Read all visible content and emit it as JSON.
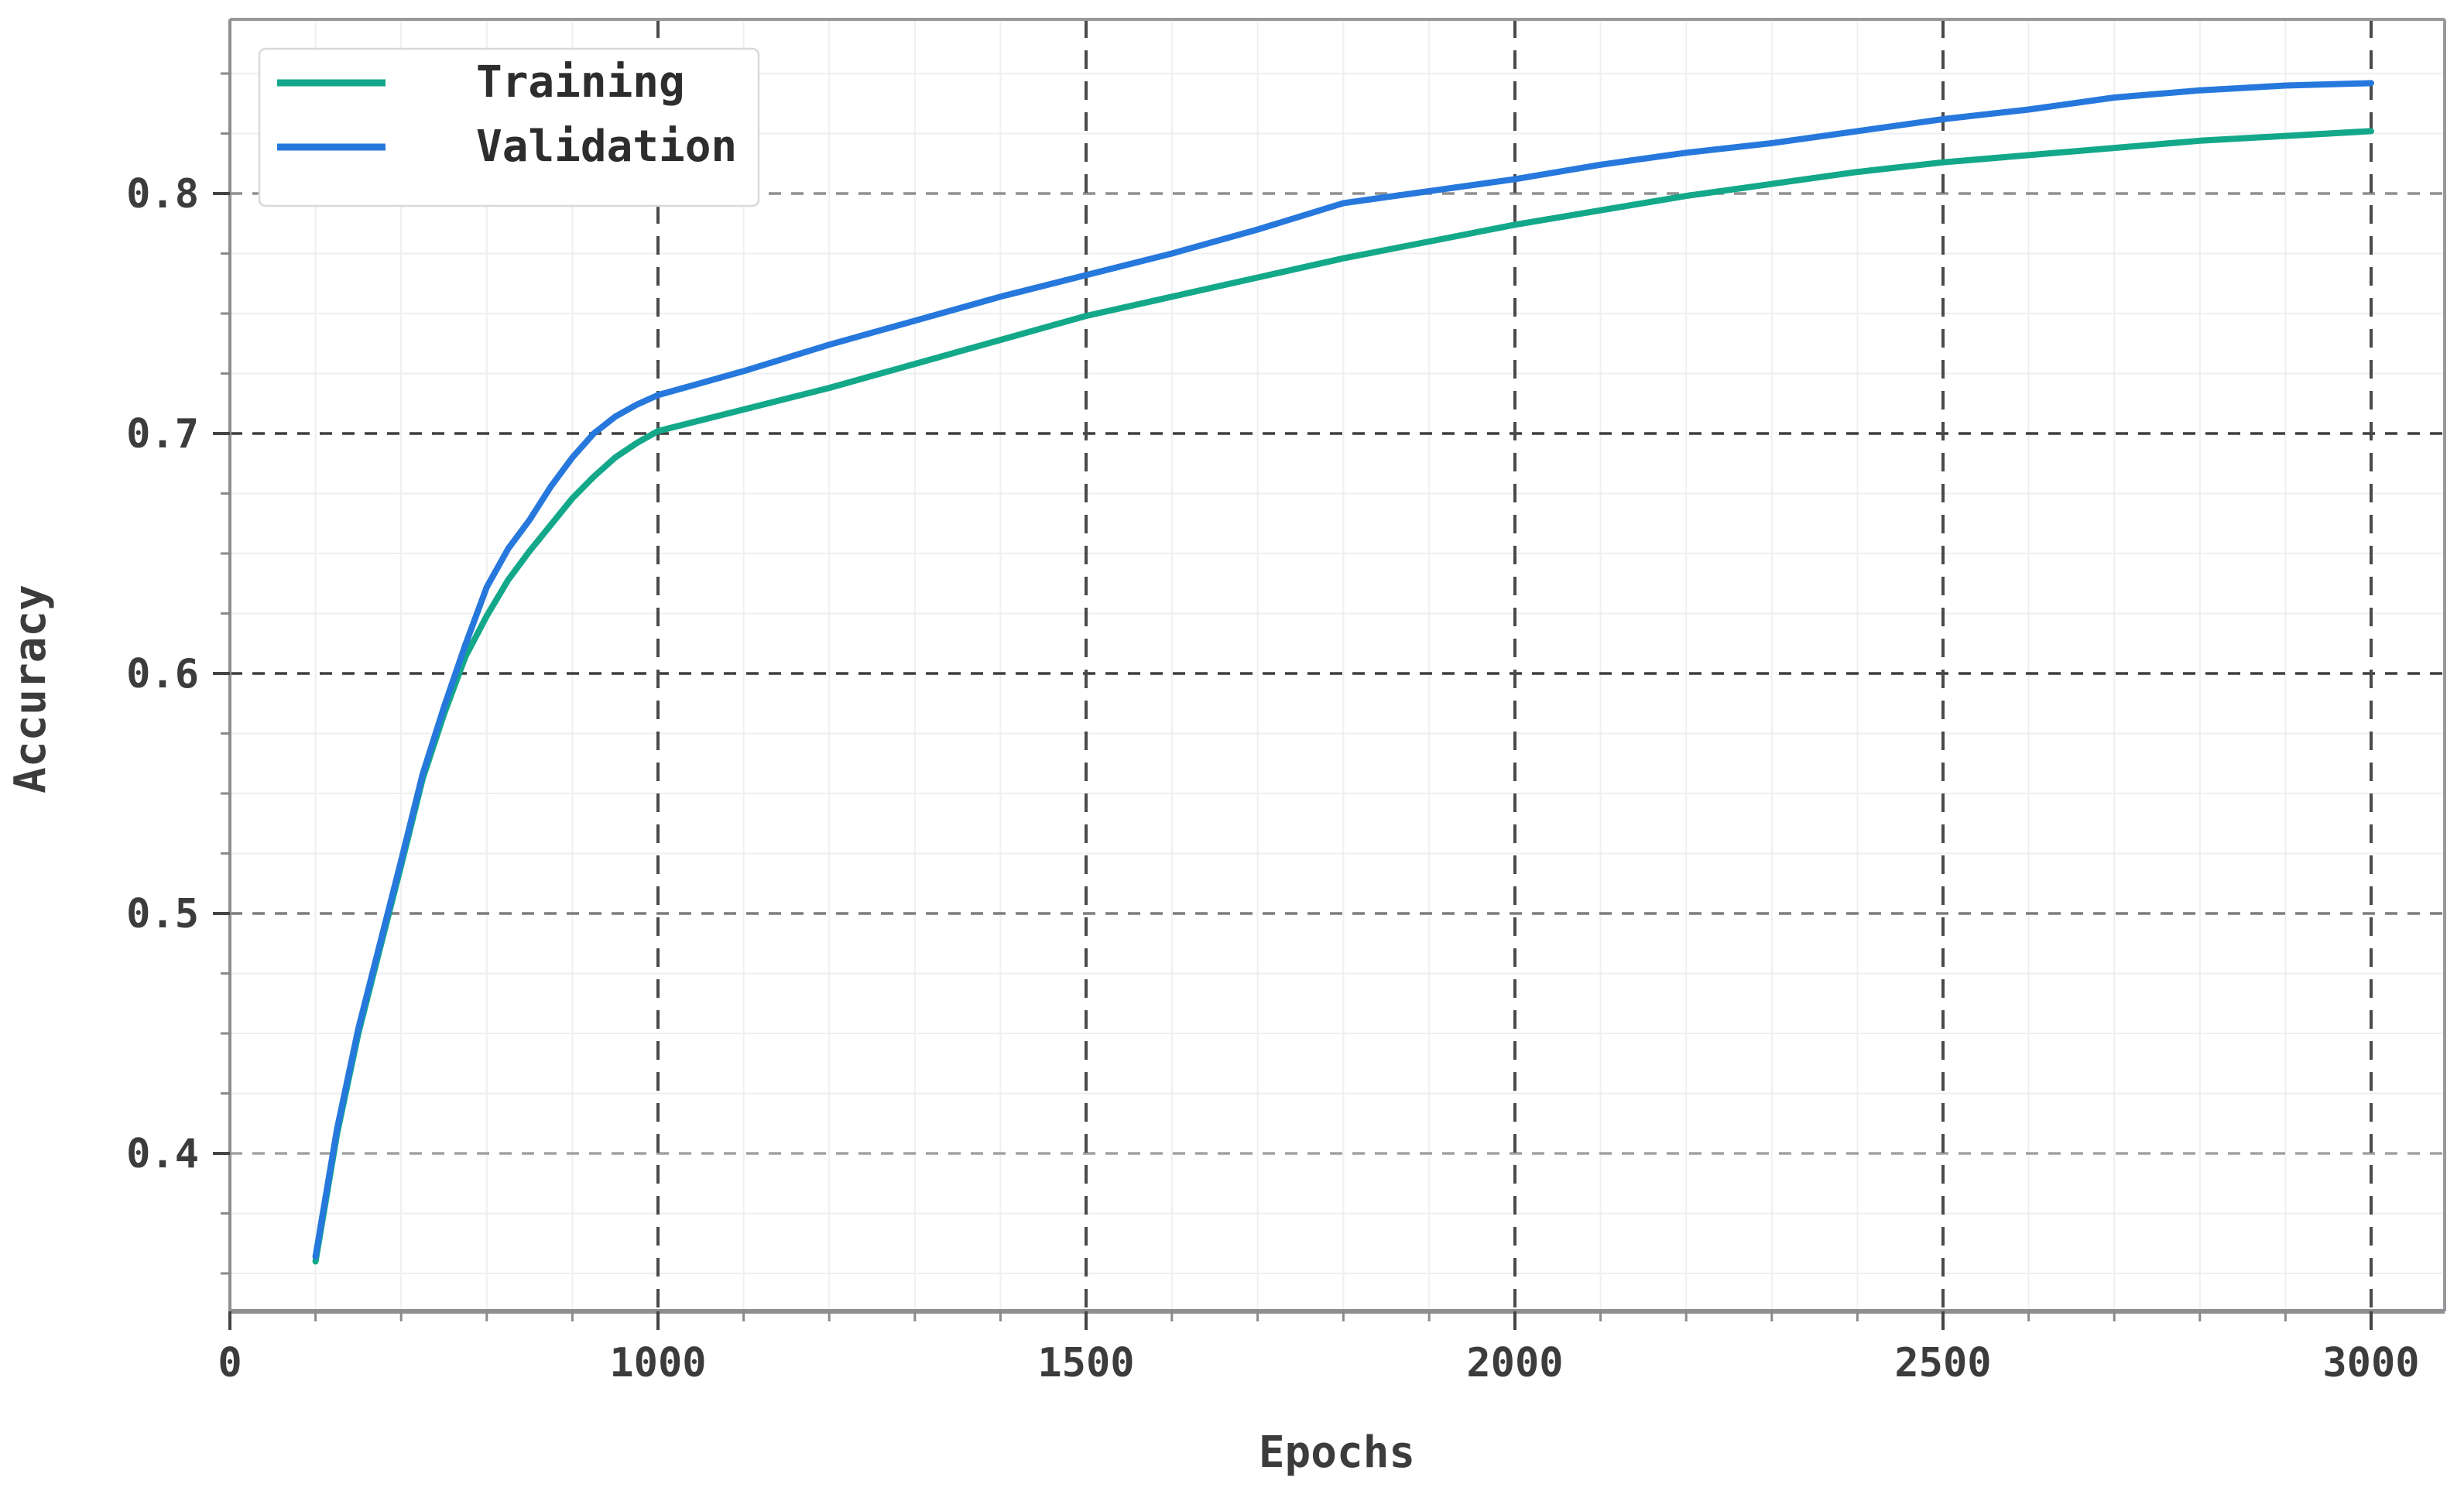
{
  "chart_data": {
    "type": "line",
    "title": "",
    "xlabel": "Epochs",
    "ylabel": "Accuracy",
    "x_tick_labels": [
      "0",
      "1000",
      "1500",
      "2000",
      "2500",
      "3000"
    ],
    "x_tick_values": [
      0,
      1000,
      1500,
      2000,
      2500,
      3000
    ],
    "x_tick_spacing": "equal spacing between consecutive labeled ticks as rendered",
    "y_tick_labels": [
      "0.4",
      "0.5",
      "0.6",
      "0.7",
      "0.8"
    ],
    "y_tick_values": [
      0.4,
      0.5,
      0.6,
      0.7,
      0.8
    ],
    "ylim": [
      0.334,
      0.873
    ],
    "y_minor_step": 0.025,
    "x_minor_subdivisions": 5,
    "grid": {
      "major_style": "dashed",
      "minor_style": "solid",
      "minor_color": "#efefef"
    },
    "legend": {
      "position": "upper-left",
      "entries": [
        {
          "label": "Training",
          "color": "#13a88a"
        },
        {
          "label": "Validation",
          "color": "#2678dc"
        }
      ]
    },
    "series": [
      {
        "name": "Training",
        "color": "#13a88a",
        "points": [
          [
            200,
            0.355
          ],
          [
            250,
            0.408
          ],
          [
            300,
            0.45
          ],
          [
            350,
            0.485
          ],
          [
            400,
            0.52
          ],
          [
            450,
            0.556
          ],
          [
            500,
            0.583
          ],
          [
            550,
            0.607
          ],
          [
            600,
            0.624
          ],
          [
            650,
            0.639
          ],
          [
            700,
            0.651
          ],
          [
            750,
            0.662
          ],
          [
            800,
            0.673
          ],
          [
            850,
            0.682
          ],
          [
            900,
            0.69
          ],
          [
            950,
            0.696
          ],
          [
            1000,
            0.701
          ],
          [
            1100,
            0.71
          ],
          [
            1200,
            0.719
          ],
          [
            1300,
            0.729
          ],
          [
            1400,
            0.739
          ],
          [
            1500,
            0.749
          ],
          [
            1600,
            0.757
          ],
          [
            1700,
            0.765
          ],
          [
            1800,
            0.773
          ],
          [
            1900,
            0.78
          ],
          [
            2000,
            0.787
          ],
          [
            2100,
            0.793
          ],
          [
            2200,
            0.799
          ],
          [
            2300,
            0.804
          ],
          [
            2400,
            0.809
          ],
          [
            2500,
            0.813
          ],
          [
            2600,
            0.816
          ],
          [
            2700,
            0.819
          ],
          [
            2800,
            0.822
          ],
          [
            2900,
            0.824
          ],
          [
            3000,
            0.826
          ]
        ]
      },
      {
        "name": "Validation",
        "color": "#2678dc",
        "points": [
          [
            200,
            0.357
          ],
          [
            250,
            0.41
          ],
          [
            300,
            0.452
          ],
          [
            350,
            0.487
          ],
          [
            400,
            0.522
          ],
          [
            450,
            0.558
          ],
          [
            500,
            0.586
          ],
          [
            550,
            0.612
          ],
          [
            600,
            0.636
          ],
          [
            650,
            0.652
          ],
          [
            700,
            0.664
          ],
          [
            750,
            0.678
          ],
          [
            800,
            0.69
          ],
          [
            850,
            0.7
          ],
          [
            900,
            0.707
          ],
          [
            950,
            0.712
          ],
          [
            1000,
            0.716
          ],
          [
            1100,
            0.726
          ],
          [
            1200,
            0.737
          ],
          [
            1300,
            0.747
          ],
          [
            1400,
            0.757
          ],
          [
            1500,
            0.766
          ],
          [
            1600,
            0.775
          ],
          [
            1700,
            0.785
          ],
          [
            1800,
            0.796
          ],
          [
            1900,
            0.801
          ],
          [
            2000,
            0.806
          ],
          [
            2100,
            0.812
          ],
          [
            2200,
            0.817
          ],
          [
            2300,
            0.821
          ],
          [
            2400,
            0.826
          ],
          [
            2500,
            0.831
          ],
          [
            2600,
            0.835
          ],
          [
            2700,
            0.84
          ],
          [
            2800,
            0.843
          ],
          [
            2900,
            0.845
          ],
          [
            3000,
            0.846
          ]
        ]
      }
    ]
  }
}
